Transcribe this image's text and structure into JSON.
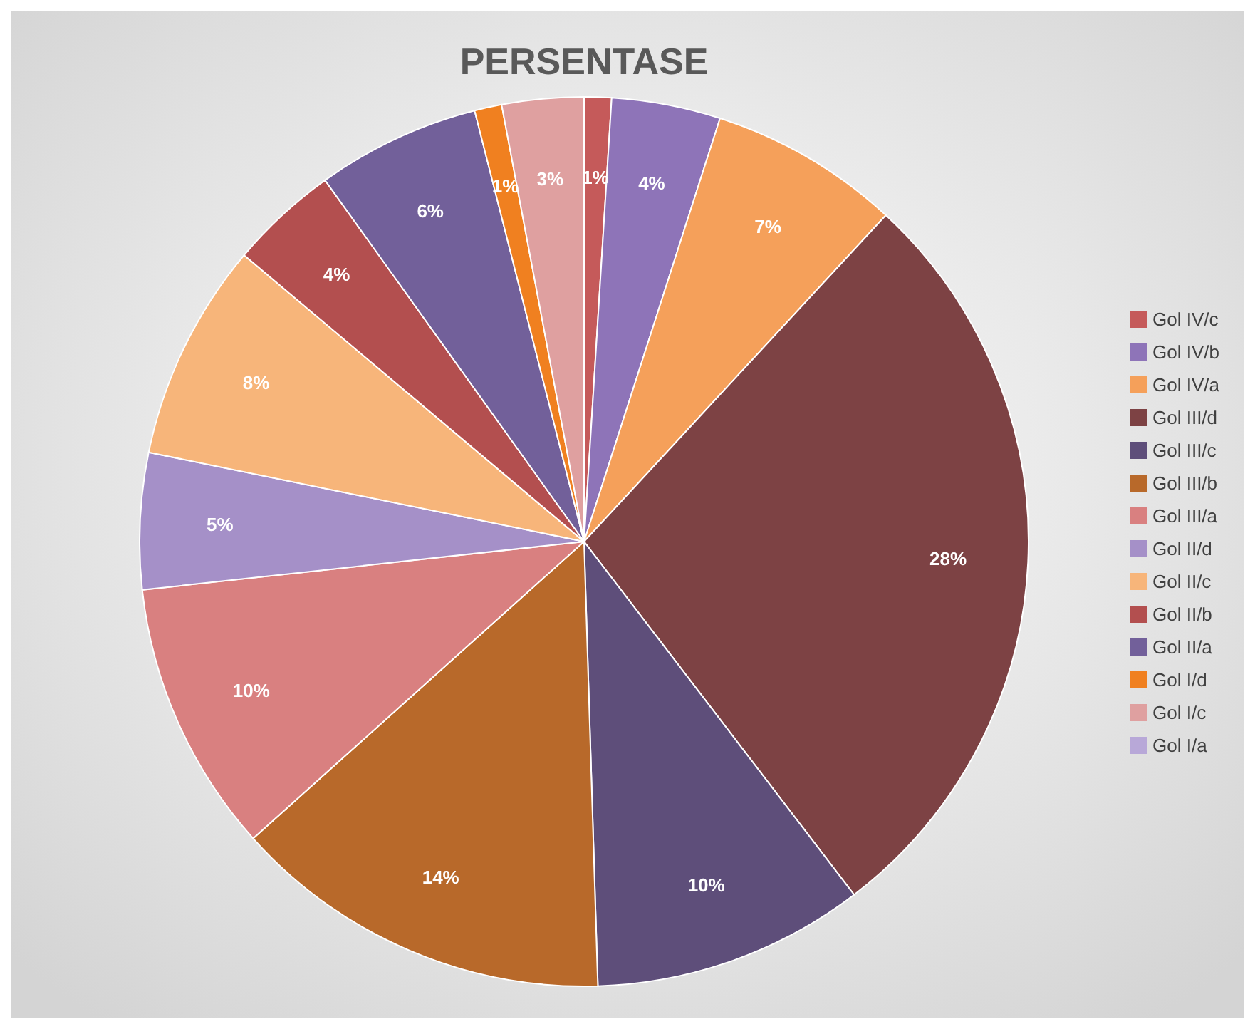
{
  "chart_data": {
    "type": "pie",
    "title": "PERSENTASE",
    "categories": [
      "Gol IV/c",
      "Gol IV/b",
      "Gol IV/a",
      "Gol III/d",
      "Gol III/c",
      "Gol III/b",
      "Gol III/a",
      "Gol II/d",
      "Gol II/c",
      "Gol II/b",
      "Gol II/a",
      "Gol I/d",
      "Gol I/c",
      "Gol I/a"
    ],
    "values": [
      1,
      4,
      7,
      28,
      10,
      14,
      10,
      5,
      8,
      4,
      6,
      1,
      3,
      0
    ],
    "value_labels": [
      "1%",
      "4%",
      "7%",
      "28%",
      "10%",
      "14%",
      "10%",
      "5%",
      "8%",
      "4%",
      "6%",
      "1%",
      "3%",
      null
    ],
    "colors": [
      "#c55a5a",
      "#8e74b8",
      "#f5a05a",
      "#7d4244",
      "#5e4e7a",
      "#b8692a",
      "#d98080",
      "#a590c8",
      "#f7b57a",
      "#b34f4f",
      "#72609a",
      "#f08020",
      "#dfa0a0",
      "#b8a8d8"
    ],
    "legend": "right"
  }
}
